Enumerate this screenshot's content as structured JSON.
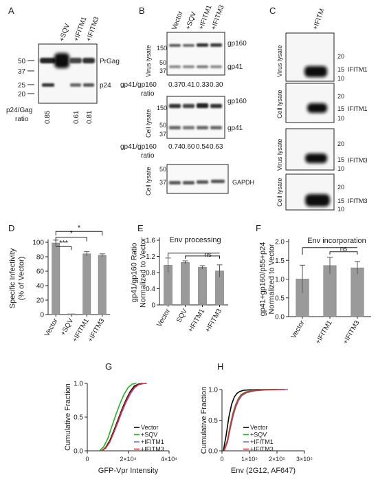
{
  "figure": {
    "panel_labels": [
      "A",
      "B",
      "C",
      "D",
      "E",
      "F",
      "G",
      "H"
    ],
    "A": {
      "lanes": [
        "+SQV",
        "+IFITM1",
        "+IFITM3"
      ],
      "markers": [
        "50",
        "37",
        "25",
        "20"
      ],
      "bands": [
        "PrGag",
        "p24"
      ],
      "ratio_label": [
        "p24/Gag",
        "ratio"
      ],
      "ratios": [
        "0.85",
        "",
        "0.61",
        "0.81"
      ]
    },
    "B": {
      "lanes": [
        "Vector",
        "+SQV",
        "+IFITM1",
        "+IFITM3"
      ],
      "blot1": {
        "side": "Virus lysate",
        "markers": [
          "150",
          "50",
          "37"
        ],
        "bands": [
          "gp160",
          "gp41"
        ]
      },
      "ratio_label_1": [
        "gp41/gp160",
        "ratio"
      ],
      "ratios_1": [
        "0.37",
        "0.41",
        "0.33",
        "0.30"
      ],
      "blot2": {
        "side": "Cell lysate",
        "markers": [
          "150",
          "50",
          "37"
        ],
        "bands": [
          "gp160",
          "gp41"
        ]
      },
      "ratio_label_2": [
        "gp41/gp160",
        "ratio"
      ],
      "ratios_2": [
        "0.74",
        "0.60",
        "0.54",
        "0.63"
      ],
      "blot3": {
        "side": "Cell lysate",
        "markers": [
          "50",
          "37"
        ],
        "bands": [
          "GAPDH"
        ]
      }
    },
    "C": {
      "lane": "+IFITM",
      "blots": [
        {
          "side": "Virus lysate",
          "band": "IFITM1"
        },
        {
          "side": "Cell lysate",
          "band": "IFITM1"
        },
        {
          "side": "Virus lysate",
          "band": "IFITM3"
        },
        {
          "side": "Cell lysate",
          "band": "IFITM3"
        }
      ],
      "markers": [
        "20",
        "15",
        "10"
      ]
    },
    "star3": "***",
    "star1": "*",
    "ns": "ns"
  },
  "chart_data": [
    {
      "panel": "D",
      "type": "bar",
      "categories": [
        "Vector",
        "+SQV",
        "+IFITM1",
        "+IFITM3"
      ],
      "values": [
        99,
        1,
        84,
        82
      ],
      "errors": [
        4,
        0,
        3,
        2
      ],
      "ylabel": "Specific Infectivity\n(% of Vector)",
      "ylim": [
        0,
        100
      ],
      "yticks": [
        0,
        20,
        40,
        60,
        80,
        100
      ],
      "color": "#9a9a9a",
      "significance": [
        {
          "from": 0,
          "to": 1,
          "label": "***"
        },
        {
          "from": 0,
          "to": 2,
          "label": "*"
        },
        {
          "from": 0,
          "to": 3,
          "label": "*"
        }
      ]
    },
    {
      "panel": "E",
      "type": "bar",
      "title": "Env processing",
      "categories": [
        "Vector",
        "SQV",
        "+IFITM1",
        "+IFITM3"
      ],
      "values": [
        0.98,
        1.05,
        0.93,
        0.84
      ],
      "errors": [
        0.18,
        0.04,
        0.04,
        0.15
      ],
      "ylabel": "gp41/gp160 Ratio\nNormalized to Vector",
      "ylim": [
        0,
        1.6
      ],
      "yticks": [
        0,
        0.4,
        0.8,
        1.2,
        1.6
      ],
      "ytick_labels": [
        "0",
        "0.4",
        "0.8",
        "1.2",
        "1.6"
      ],
      "color": "#9a9a9a",
      "annotation": "ns"
    },
    {
      "panel": "F",
      "type": "bar",
      "title": "Env incorporation",
      "categories": [
        "Vector",
        "+IFITM1",
        "+IFITM3"
      ],
      "values": [
        1.0,
        1.36,
        1.3
      ],
      "errors": [
        0.37,
        0.22,
        0.17
      ],
      "ylabel": "gp41+gp160/p55+p24\nNormalized to Vector",
      "ylim": [
        0,
        2.0
      ],
      "yticks": [
        0,
        0.5,
        1.0,
        1.5,
        2.0
      ],
      "ytick_labels": [
        "0.0",
        "0.5",
        "1.0",
        "1.5",
        "2.0"
      ],
      "color": "#9a9a9a",
      "annotation": "ns"
    },
    {
      "panel": "G",
      "type": "line",
      "xlabel": "GFP-Vpr Intensity",
      "ylabel": "Cumulative Fraction",
      "xlim": [
        0,
        40000
      ],
      "ylim": [
        0,
        1.0
      ],
      "xticks": [
        0,
        20000,
        40000
      ],
      "xtick_labels": [
        "0",
        "2×10⁴",
        "4×10⁴"
      ],
      "yticks": [
        0,
        0.5,
        1.0
      ],
      "ytick_labels": [
        "0.0",
        "0.5",
        "1.0"
      ],
      "legend": "bottom-right",
      "series": [
        {
          "name": "Vector",
          "color": "#000000",
          "x": [
            7000,
            9000,
            11000,
            13000,
            15000,
            17000,
            19000,
            21000,
            23000,
            25000,
            27000
          ],
          "y": [
            0,
            0.05,
            0.15,
            0.3,
            0.46,
            0.62,
            0.76,
            0.88,
            0.96,
            0.99,
            1.0
          ]
        },
        {
          "name": "+SQV",
          "color": "#1fb31f",
          "x": [
            6000,
            8000,
            10000,
            12000,
            14000,
            16000,
            18000,
            20000,
            22000,
            24000
          ],
          "y": [
            0,
            0.06,
            0.18,
            0.36,
            0.54,
            0.7,
            0.84,
            0.94,
            0.99,
            1.0
          ]
        },
        {
          "name": "+IFITM1",
          "color": "#6f6fe0",
          "x": [
            7000,
            9000,
            11000,
            13000,
            15000,
            17000,
            19000,
            21000,
            23000,
            25000,
            27000,
            29000
          ],
          "y": [
            0,
            0.04,
            0.13,
            0.27,
            0.42,
            0.58,
            0.72,
            0.84,
            0.93,
            0.98,
            0.995,
            1.0
          ]
        },
        {
          "name": "+IFITM3",
          "color": "#e02a2a",
          "x": [
            7000,
            9000,
            11000,
            13000,
            15000,
            17000,
            19000,
            21000,
            23000,
            25000,
            27000,
            29000
          ],
          "y": [
            0,
            0.04,
            0.13,
            0.28,
            0.44,
            0.6,
            0.74,
            0.86,
            0.94,
            0.98,
            0.995,
            1.0
          ]
        }
      ]
    },
    {
      "panel": "H",
      "type": "line",
      "xlabel": "Env (2G12, AF647)",
      "ylabel": "Cumulative Fraction",
      "xlim": [
        0,
        300000
      ],
      "ylim": [
        0,
        1.0
      ],
      "xticks": [
        0,
        100000,
        200000,
        300000
      ],
      "xtick_labels": [
        "0",
        "1×10⁵",
        "2×10⁵",
        "3×10⁵"
      ],
      "yticks": [
        0,
        0.5,
        1.0
      ],
      "ytick_labels": [
        "0.0",
        "0.5",
        "1.0"
      ],
      "legend": "bottom-right",
      "series": [
        {
          "name": "Vector",
          "color": "#000000",
          "x": [
            5000,
            15000,
            25000,
            35000,
            45000,
            55000,
            65000,
            80000,
            100000,
            140000,
            200000
          ],
          "y": [
            0,
            0.25,
            0.55,
            0.76,
            0.88,
            0.94,
            0.97,
            0.99,
            0.995,
            1.0,
            1.0
          ]
        },
        {
          "name": "+SQV",
          "color": "#1fb31f",
          "x": [
            8000,
            20000,
            30000,
            40000,
            50000,
            60000,
            70000,
            85000,
            110000,
            150000,
            220000
          ],
          "y": [
            0,
            0.18,
            0.42,
            0.62,
            0.76,
            0.86,
            0.92,
            0.96,
            0.985,
            0.998,
            1.0
          ]
        },
        {
          "name": "+IFITM1",
          "color": "#6f6fe0",
          "x": [
            8000,
            20000,
            30000,
            40000,
            50000,
            60000,
            72000,
            90000,
            120000,
            160000,
            240000
          ],
          "y": [
            0,
            0.14,
            0.36,
            0.56,
            0.71,
            0.82,
            0.9,
            0.95,
            0.98,
            0.995,
            1.0
          ]
        },
        {
          "name": "+IFITM3",
          "color": "#e02a2a",
          "x": [
            8000,
            20000,
            30000,
            40000,
            50000,
            60000,
            70000,
            88000,
            115000,
            155000,
            230000
          ],
          "y": [
            0,
            0.16,
            0.39,
            0.59,
            0.74,
            0.84,
            0.91,
            0.955,
            0.982,
            0.996,
            1.0
          ]
        }
      ]
    }
  ]
}
